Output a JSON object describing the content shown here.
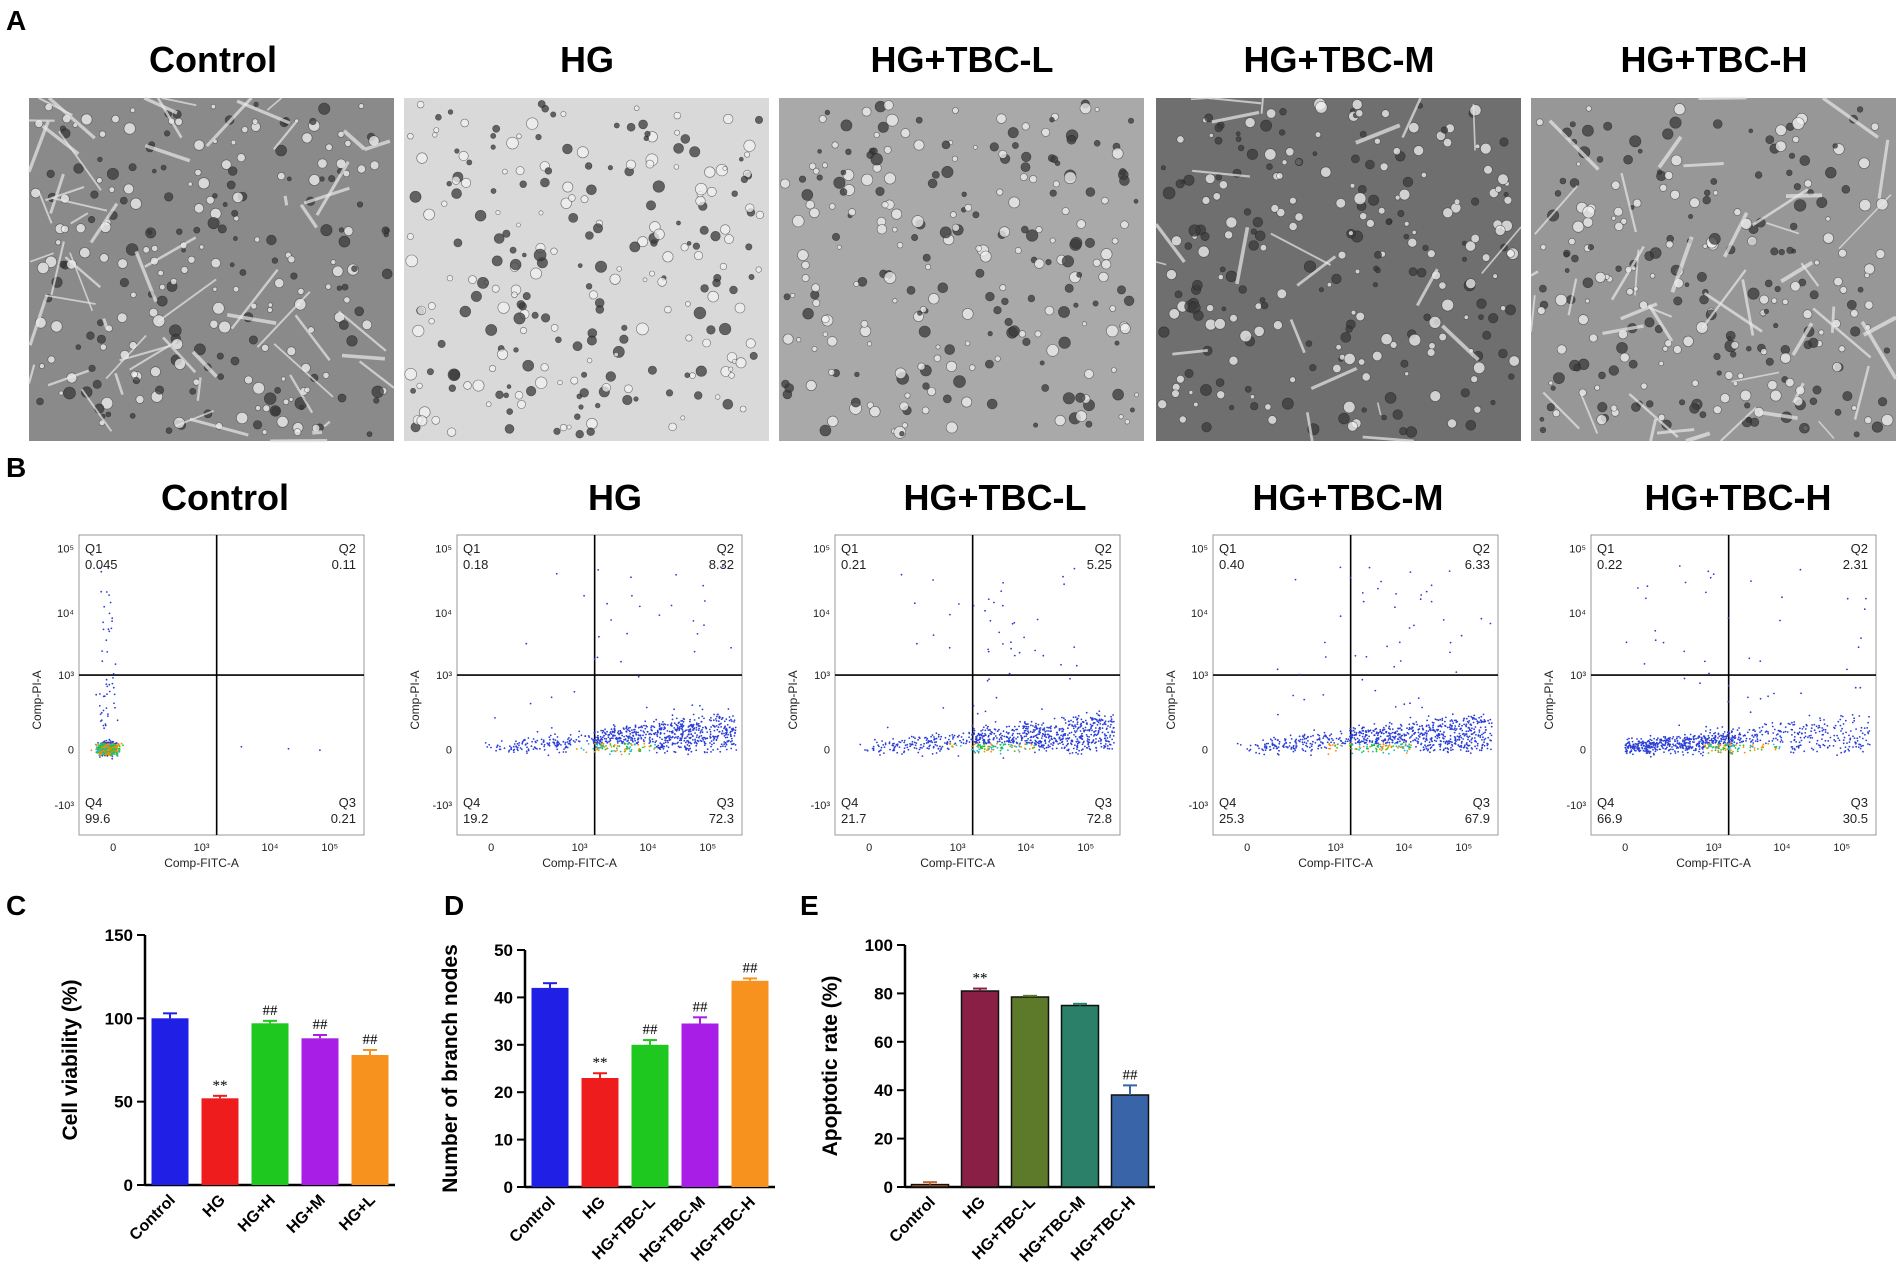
{
  "panel_letters": {
    "a": "A",
    "b": "B",
    "c": "C",
    "d": "D",
    "e": "E"
  },
  "micrograph_titles": [
    "Control",
    "HG",
    "HG+TBC-L",
    "HG+TBC-M",
    "HG+TBC-H"
  ],
  "micrograph_tones": [
    "#8a8a8a",
    "#d9d9d9",
    "#a9a9a9",
    "#6f6f6f",
    "#979797"
  ],
  "flow_titles": [
    "Control",
    "HG",
    "HG+TBC-L",
    "HG+TBC-M",
    "HG+TBC-H"
  ],
  "flow_axes": {
    "xlabel": "Comp-FITC-A",
    "ylabel": "Comp-PI-A",
    "xticks": [
      "0",
      "10³",
      "10⁴",
      "10⁵"
    ],
    "yticks": [
      "10⁵",
      "10⁴",
      "10³",
      "0",
      "-10³"
    ]
  },
  "flow_plots": [
    {
      "q1": "Q1",
      "q1v": "0.045",
      "q2": "Q2",
      "q2v": "0.11",
      "q3": "Q3",
      "q3v": "0.21",
      "q4": "Q4",
      "q4v": "99.6"
    },
    {
      "q1": "Q1",
      "q1v": "0.18",
      "q2": "Q2",
      "q2v": "8.32",
      "q3": "Q3",
      "q3v": "72.3",
      "q4": "Q4",
      "q4v": "19.2"
    },
    {
      "q1": "Q1",
      "q1v": "0.21",
      "q2": "Q2",
      "q2v": "5.25",
      "q3": "Q3",
      "q3v": "72.8",
      "q4": "Q4",
      "q4v": "21.7"
    },
    {
      "q1": "Q1",
      "q1v": "0.40",
      "q2": "Q2",
      "q2v": "6.33",
      "q3": "Q3",
      "q3v": "67.9",
      "q4": "Q4",
      "q4v": "25.3"
    },
    {
      "q1": "Q1",
      "q1v": "0.22",
      "q2": "Q2",
      "q2v": "2.31",
      "q3": "Q3",
      "q3v": "30.5",
      "q4": "Q4",
      "q4v": "66.9"
    }
  ],
  "chart_data": [
    {
      "type": "bar",
      "ylabel": "Cell viability (%)",
      "categories": [
        "Control",
        "HG",
        "HG+H",
        "HG+M",
        "HG+L"
      ],
      "values": [
        100,
        52,
        97,
        88,
        78
      ],
      "errors": [
        3,
        1.5,
        1.5,
        2,
        3
      ],
      "annotations": [
        "",
        "**",
        "##",
        "##",
        "##"
      ],
      "colors": [
        "#1f1fe6",
        "#ee1c1c",
        "#1ec81e",
        "#a81ee6",
        "#f7921e"
      ],
      "ylim": [
        0,
        150
      ],
      "yticks": [
        0,
        50,
        100,
        150
      ]
    },
    {
      "type": "bar",
      "ylabel": "Number of branch nodes",
      "categories": [
        "Control",
        "HG",
        "HG+TBC-L",
        "HG+TBC-M",
        "HG+TBC-H"
      ],
      "values": [
        42,
        23,
        30,
        34.5,
        43.5
      ],
      "errors": [
        1,
        1,
        1,
        1.3,
        0.5
      ],
      "annotations": [
        "",
        "**",
        "##",
        "##",
        "##"
      ],
      "colors": [
        "#1f1fe6",
        "#ee1c1c",
        "#1ec81e",
        "#a81ee6",
        "#f7921e"
      ],
      "ylim": [
        0,
        50
      ],
      "yticks": [
        0,
        10,
        20,
        30,
        40,
        50
      ]
    },
    {
      "type": "bar",
      "ylabel": "Apoptotic rate (%)",
      "categories": [
        "Control",
        "HG",
        "HG+TBC-L",
        "HG+TBC-M",
        "HG+TBC-H"
      ],
      "values": [
        1,
        81,
        78.5,
        75,
        38
      ],
      "errors": [
        1,
        1,
        0.5,
        0.7,
        4
      ],
      "annotations": [
        "",
        "**",
        "",
        "",
        "##"
      ],
      "colors": [
        "#c0682f",
        "#8a1f45",
        "#5d7a2a",
        "#2a8068",
        "#3a64a8"
      ],
      "ylim": [
        0,
        100
      ],
      "yticks": [
        0,
        20,
        40,
        60,
        80,
        100
      ]
    }
  ]
}
